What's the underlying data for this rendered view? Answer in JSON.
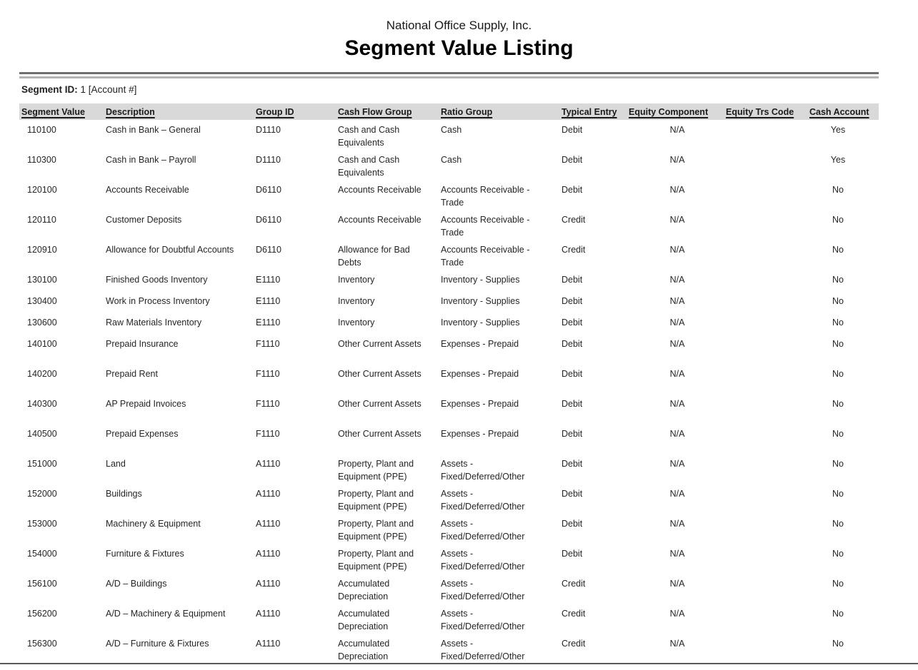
{
  "report": {
    "company": "National Office Supply, Inc.",
    "title": "Segment Value Listing",
    "segment_id_label": "Segment ID:",
    "segment_id_value": "1 [Account #]"
  },
  "colors": {
    "header_band": "#d9d9d9",
    "rule_dark": "#6e6e6e",
    "rule_light": "#b3b3b3",
    "bottom_rule": "#595959",
    "text": "#262626"
  },
  "table": {
    "columns": [
      {
        "key": "segment_value",
        "label": "Segment Value",
        "align": "left"
      },
      {
        "key": "description",
        "label": "Description",
        "align": "left"
      },
      {
        "key": "group_id",
        "label": "Group ID",
        "align": "left"
      },
      {
        "key": "cash_flow_group",
        "label": "Cash Flow Group",
        "align": "left"
      },
      {
        "key": "ratio_group",
        "label": "Ratio Group",
        "align": "left"
      },
      {
        "key": "typical_entry",
        "label": "Typical Entry",
        "align": "left"
      },
      {
        "key": "equity_component",
        "label": "Equity Component",
        "align": "center"
      },
      {
        "key": "equity_trs_code",
        "label": "Equity Trs Code",
        "align": "left"
      },
      {
        "key": "cash_account",
        "label": "Cash Account",
        "align": "center"
      }
    ],
    "rows": [
      {
        "size": "tall",
        "cells": [
          "110100",
          "Cash in Bank – General",
          "D1110",
          "Cash and Cash Equivalents",
          "Cash",
          "Debit",
          "N/A",
          "",
          "Yes"
        ]
      },
      {
        "size": "tall",
        "cells": [
          "110300",
          "Cash in Bank – Payroll",
          "D1110",
          "Cash and Cash Equivalents",
          "Cash",
          "Debit",
          "N/A",
          "",
          "Yes"
        ]
      },
      {
        "size": "tall",
        "cells": [
          "120100",
          "Accounts Receivable",
          "D6110",
          "Accounts Receivable",
          "Accounts Receivable - Trade",
          "Debit",
          "N/A",
          "",
          "No"
        ]
      },
      {
        "size": "tall",
        "cells": [
          "120110",
          "Customer Deposits",
          "D6110",
          "Accounts Receivable",
          "Accounts Receivable - Trade",
          "Credit",
          "N/A",
          "",
          "No"
        ]
      },
      {
        "size": "tall",
        "cells": [
          "120910",
          "Allowance for Doubtful Accounts",
          "D6110",
          "Allowance for Bad Debts",
          "Accounts Receivable - Trade",
          "Credit",
          "N/A",
          "",
          "No"
        ]
      },
      {
        "size": "short",
        "cells": [
          "130100",
          "Finished Goods Inventory",
          "E1110",
          "Inventory",
          "Inventory - Supplies",
          "Debit",
          "N/A",
          "",
          "No"
        ]
      },
      {
        "size": "short",
        "cells": [
          "130400",
          "Work in Process Inventory",
          "E1110",
          "Inventory",
          "Inventory - Supplies",
          "Debit",
          "N/A",
          "",
          "No"
        ]
      },
      {
        "size": "short",
        "cells": [
          "130600",
          "Raw Materials Inventory",
          "E1110",
          "Inventory",
          "Inventory - Supplies",
          "Debit",
          "N/A",
          "",
          "No"
        ]
      },
      {
        "size": "tall",
        "cells": [
          "140100",
          "Prepaid Insurance",
          "F1110",
          "Other Current Assets",
          "Expenses - Prepaid",
          "Debit",
          "N/A",
          "",
          "No"
        ]
      },
      {
        "size": "tall",
        "cells": [
          "140200",
          "Prepaid Rent",
          "F1110",
          "Other Current Assets",
          "Expenses - Prepaid",
          "Debit",
          "N/A",
          "",
          "No"
        ]
      },
      {
        "size": "tall",
        "cells": [
          "140300",
          "AP Prepaid Invoices",
          "F1110",
          "Other Current Assets",
          "Expenses - Prepaid",
          "Debit",
          "N/A",
          "",
          "No"
        ]
      },
      {
        "size": "tall",
        "cells": [
          "140500",
          "Prepaid Expenses",
          "F1110",
          "Other Current Assets",
          "Expenses - Prepaid",
          "Debit",
          "N/A",
          "",
          "No"
        ]
      },
      {
        "size": "tall",
        "cells": [
          "151000",
          "Land",
          "A1110",
          "Property, Plant and Equipment (PPE)",
          "Assets - Fixed/Deferred/Other",
          "Debit",
          "N/A",
          "",
          "No"
        ]
      },
      {
        "size": "tall",
        "cells": [
          "152000",
          "Buildings",
          "A1110",
          "Property, Plant and Equipment (PPE)",
          "Assets - Fixed/Deferred/Other",
          "Debit",
          "N/A",
          "",
          "No"
        ]
      },
      {
        "size": "tall",
        "cells": [
          "153000",
          "Machinery & Equipment",
          "A1110",
          "Property, Plant and Equipment (PPE)",
          "Assets - Fixed/Deferred/Other",
          "Debit",
          "N/A",
          "",
          "No"
        ]
      },
      {
        "size": "tall",
        "cells": [
          "154000",
          "Furniture & Fixtures",
          "A1110",
          "Property, Plant and Equipment (PPE)",
          "Assets - Fixed/Deferred/Other",
          "Debit",
          "N/A",
          "",
          "No"
        ]
      },
      {
        "size": "tall",
        "cells": [
          "156100",
          "A/D – Buildings",
          "A1110",
          "Accumulated Depreciation",
          "Assets - Fixed/Deferred/Other",
          "Credit",
          "N/A",
          "",
          "No"
        ]
      },
      {
        "size": "tall",
        "cells": [
          "156200",
          "A/D – Machinery & Equipment",
          "A1110",
          "Accumulated Depreciation",
          "Assets - Fixed/Deferred/Other",
          "Credit",
          "N/A",
          "",
          "No"
        ]
      },
      {
        "size": "tall",
        "cells": [
          "156300",
          "A/D – Furniture & Fixtures",
          "A1110",
          "Accumulated Depreciation",
          "Assets - Fixed/Deferred/Other",
          "Credit",
          "N/A",
          "",
          "No"
        ]
      }
    ]
  }
}
